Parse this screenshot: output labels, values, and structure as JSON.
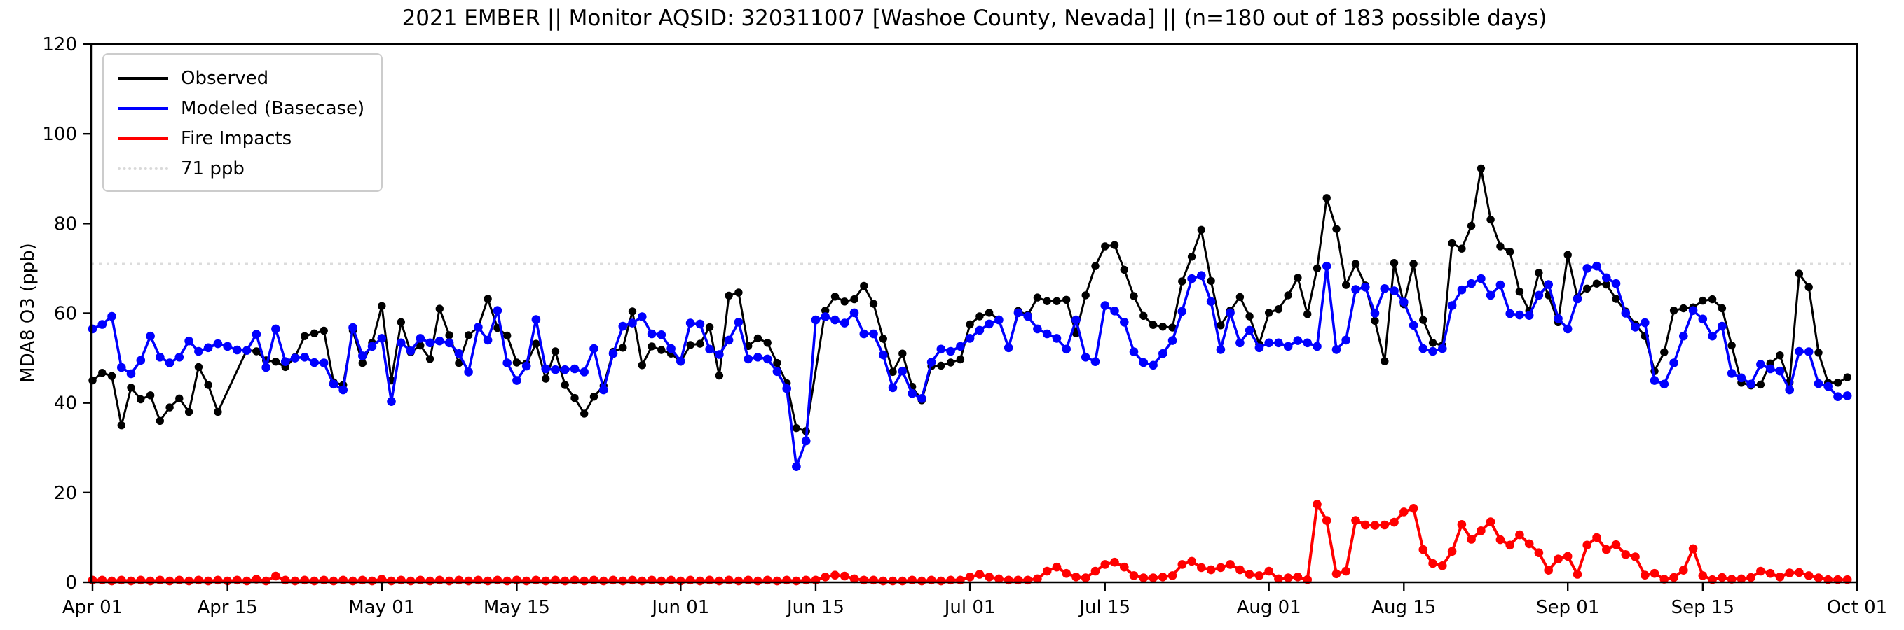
{
  "title": "2021 EMBER || Monitor AQSID: 320311007 [Washoe County, Nevada] || (n=180 out of 183 possible days)",
  "y_axis": {
    "label": "MDA8 O3 (ppb)",
    "ticks": [
      0,
      20,
      40,
      60,
      80,
      100,
      120
    ],
    "range": [
      0,
      120
    ]
  },
  "x_axis": {
    "tick_labels": [
      "Apr 01",
      "Apr 15",
      "May 01",
      "May 15",
      "Jun 01",
      "Jun 15",
      "Jul 01",
      "Jul 15",
      "Aug 01",
      "Aug 15",
      "Sep 01",
      "Sep 15",
      "Oct 01"
    ],
    "tick_day_indices": [
      0,
      14,
      30,
      44,
      61,
      75,
      91,
      105,
      122,
      136,
      153,
      167,
      183
    ],
    "total_days": 183
  },
  "legend": {
    "items": [
      {
        "label": "Observed",
        "style": "solid",
        "color": "#000000"
      },
      {
        "label": "Modeled (Basecase)",
        "style": "solid",
        "color": "#0000ff"
      },
      {
        "label": "Fire Impacts",
        "style": "solid",
        "color": "#ff0000"
      },
      {
        "label": "71 ppb",
        "style": "dotted",
        "color": "#d9d9d9"
      }
    ]
  },
  "chart_data": {
    "type": "line",
    "title": "2021 EMBER || Monitor AQSID: 320311007 [Washoe County, Nevada] || (n=180 out of 183 possible days)",
    "xlabel": "",
    "ylabel": "MDA8 O3 (ppb)",
    "ylim": [
      0,
      120
    ],
    "grid": false,
    "legend_position": "upper left",
    "threshold_ppb": 71,
    "threshold_color": "#dcdcdc",
    "start_date": "Apr 01",
    "end_date": "Sep 30",
    "n_days_shown": 180,
    "n_days_possible": 183,
    "series": [
      {
        "name": "Observed",
        "color": "#000000",
        "line_width": 3,
        "marker_radius": 5.7,
        "values": [
          45.0,
          46.7,
          46.0,
          35.0,
          43.4,
          40.8,
          41.7,
          36.0,
          39.0,
          41.0,
          38.0,
          48.0,
          44.0,
          38.0,
          null,
          null,
          51.8,
          51.5,
          49.5,
          49.2,
          48.0,
          50.2,
          54.9,
          55.5,
          56.1,
          44.6,
          44.0,
          56.1,
          48.9,
          53.4,
          61.6,
          45.0,
          58.0,
          51.3,
          52.8,
          49.8,
          61.0,
          55.1,
          48.9,
          55.1,
          56.9,
          63.2,
          56.7,
          55.0,
          49.0,
          48.8,
          53.2,
          45.4,
          51.5,
          44.0,
          41.1,
          37.6,
          41.4,
          43.8,
          51.4,
          52.3,
          60.4,
          48.4,
          52.6,
          51.8,
          51.0,
          49.2,
          52.9,
          53.2,
          56.9,
          46.1,
          63.9,
          64.6,
          52.7,
          54.4,
          53.4,
          48.9,
          44.4,
          34.4,
          33.7,
          null,
          60.6,
          63.7,
          62.6,
          63.1,
          66.1,
          62.1,
          54.3,
          46.9,
          51.0,
          43.6,
          40.6,
          48.2,
          48.3,
          49.0,
          49.7,
          57.5,
          59.3,
          60.1,
          58.6,
          52.3,
          60.5,
          59.6,
          63.5,
          62.7,
          62.7,
          63.0,
          55.5,
          64.0,
          70.5,
          74.9,
          75.2,
          69.7,
          63.8,
          59.4,
          57.4,
          57.0,
          56.8,
          67.1,
          72.6,
          78.6,
          67.2,
          57.3,
          60.6,
          63.6,
          59.3,
          53.1,
          60.1,
          60.9,
          64.0,
          67.9,
          59.8,
          70.0,
          85.7,
          78.8,
          66.3,
          71.0,
          66.2,
          58.3,
          49.3,
          71.2,
          62.0,
          71.0,
          58.5,
          53.4,
          52.8,
          75.6,
          74.4,
          79.5,
          92.3,
          80.9,
          74.9,
          73.7,
          64.8,
          60.5,
          69.0,
          64.0,
          58.0,
          73.0,
          63.5,
          65.5,
          66.6,
          66.4,
          63.2,
          60.4,
          57.5,
          54.9,
          47.1,
          51.3,
          60.6,
          61.1,
          61.3,
          62.8,
          63.1,
          61.1,
          52.8,
          44.5,
          43.9,
          44.1,
          48.8,
          50.6,
          44.6,
          68.8,
          65.8,
          51.2,
          44.5,
          44.5,
          45.7
        ]
      },
      {
        "name": "Modeled (Basecase)",
        "color": "#0000ff",
        "line_width": 3.6,
        "marker_radius": 6.3,
        "values": [
          56.5,
          57.5,
          59.3,
          47.9,
          46.5,
          49.5,
          54.9,
          50.2,
          48.9,
          50.2,
          53.8,
          51.5,
          52.3,
          53.2,
          52.6,
          51.8,
          51.7,
          55.3,
          47.9,
          56.5,
          49.2,
          50.0,
          50.2,
          49.0,
          48.9,
          44.2,
          42.9,
          56.8,
          50.5,
          52.6,
          54.4,
          40.3,
          53.4,
          51.6,
          54.4,
          53.4,
          53.8,
          53.4,
          51.0,
          46.9,
          56.9,
          54.0,
          60.6,
          48.9,
          45.0,
          48.2,
          58.6,
          47.6,
          47.4,
          47.4,
          47.6,
          46.9,
          52.1,
          42.9,
          51.0,
          57.1,
          57.8,
          59.2,
          55.4,
          55.2,
          52.1,
          49.3,
          57.8,
          57.6,
          52.0,
          50.8,
          54.0,
          58.0,
          49.8,
          50.2,
          49.8,
          47.0,
          43.2,
          25.8,
          31.5,
          58.5,
          59.2,
          58.5,
          57.8,
          60.1,
          55.4,
          55.4,
          50.7,
          43.4,
          47.1,
          42.1,
          41.0,
          49.1,
          52.0,
          51.5,
          52.6,
          54.4,
          56.2,
          57.6,
          58.5,
          52.3,
          60.1,
          59.3,
          56.5,
          55.4,
          54.4,
          52.0,
          58.5,
          50.2,
          49.2,
          61.7,
          60.5,
          58.0,
          51.4,
          49.0,
          48.4,
          51.0,
          53.9,
          60.4,
          67.7,
          68.4,
          62.6,
          51.9,
          60.1,
          53.4,
          56.2,
          52.3,
          53.4,
          53.4,
          52.6,
          53.9,
          53.4,
          52.6,
          70.5,
          51.9,
          54.0,
          65.3,
          65.8,
          60.0,
          65.5,
          65.0,
          62.5,
          57.3,
          52.1,
          51.5,
          52.1,
          61.7,
          65.2,
          66.6,
          67.7,
          64.0,
          66.3,
          59.9,
          59.6,
          59.5,
          64.0,
          66.4,
          58.8,
          56.5,
          63.2,
          70.0,
          70.5,
          67.9,
          66.6,
          60.0,
          56.9,
          57.9,
          45.0,
          44.2,
          48.9,
          54.9,
          60.6,
          58.7,
          54.9,
          57.1,
          46.6,
          45.6,
          44.2,
          48.6,
          47.6,
          47.1,
          42.9,
          51.5,
          51.4,
          44.3,
          43.7,
          41.4,
          41.6
        ]
      },
      {
        "name": "Fire Impacts",
        "color": "#ff0000",
        "line_width": 4,
        "marker_radius": 6.3,
        "values": [
          0.5,
          0.5,
          0.3,
          0.5,
          0.3,
          0.5,
          0.3,
          0.5,
          0.3,
          0.5,
          0.3,
          0.5,
          0.3,
          0.5,
          0.3,
          0.5,
          0.3,
          0.7,
          0.3,
          1.4,
          0.5,
          0.3,
          0.5,
          0.3,
          0.5,
          0.3,
          0.5,
          0.3,
          0.5,
          0.3,
          0.7,
          0.3,
          0.5,
          0.3,
          0.5,
          0.3,
          0.5,
          0.3,
          0.5,
          0.3,
          0.5,
          0.3,
          0.5,
          0.3,
          0.5,
          0.3,
          0.5,
          0.3,
          0.5,
          0.3,
          0.5,
          0.3,
          0.5,
          0.3,
          0.5,
          0.3,
          0.5,
          0.3,
          0.5,
          0.3,
          0.5,
          0.3,
          0.5,
          0.3,
          0.5,
          0.3,
          0.5,
          0.3,
          0.5,
          0.3,
          0.5,
          0.3,
          0.5,
          0.3,
          0.5,
          0.5,
          1.2,
          1.6,
          1.4,
          0.8,
          0.5,
          0.5,
          0.3,
          0.3,
          0.3,
          0.5,
          0.3,
          0.5,
          0.3,
          0.5,
          0.5,
          1.2,
          1.8,
          1.2,
          0.8,
          0.5,
          0.5,
          0.5,
          0.8,
          2.5,
          3.4,
          2.0,
          1.2,
          1.0,
          2.5,
          4.0,
          4.5,
          3.4,
          1.5,
          1.0,
          1.0,
          1.2,
          1.5,
          4.0,
          4.7,
          3.3,
          2.8,
          3.3,
          4.0,
          2.8,
          1.8,
          1.5,
          2.5,
          0.8,
          1.0,
          1.2,
          0.6,
          17.4,
          13.8,
          1.9,
          2.5,
          13.8,
          12.8,
          12.7,
          12.8,
          13.4,
          15.7,
          16.5,
          7.3,
          4.2,
          3.7,
          6.9,
          12.9,
          9.6,
          11.5,
          13.5,
          9.5,
          8.3,
          10.6,
          8.6,
          6.6,
          2.7,
          5.2,
          5.8,
          1.8,
          8.3,
          10.0,
          7.3,
          8.4,
          6.2,
          5.7,
          1.6,
          2.0,
          0.7,
          1.1,
          2.7,
          7.5,
          1.5,
          0.6,
          1.1,
          0.7,
          0.8,
          1.1,
          2.5,
          2.0,
          1.2,
          2.1,
          2.2,
          1.5,
          1.0,
          0.6,
          0.6,
          0.6
        ]
      }
    ]
  }
}
